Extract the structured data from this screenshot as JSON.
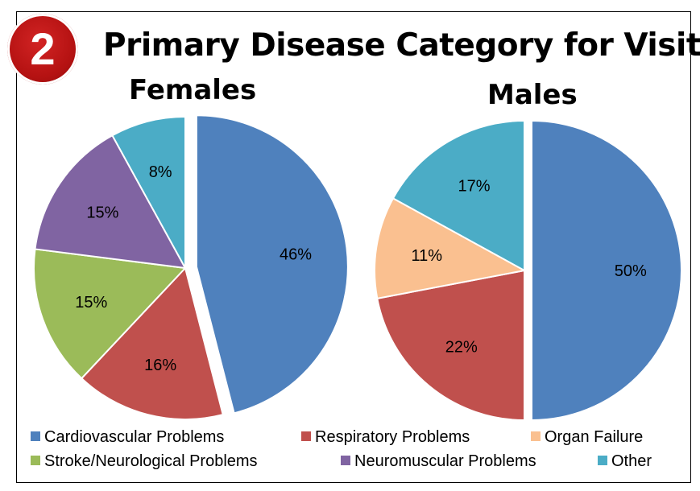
{
  "badge": "2",
  "title": "Primary Disease Category for Visit",
  "chart_data": [
    {
      "type": "pie",
      "title": "Females",
      "categories": [
        "Cardiovascular Problems",
        "Respiratory Problems",
        "Stroke/Neurological Problems",
        "Neuromuscular Problems",
        "Other"
      ],
      "values": [
        46,
        16,
        15,
        15,
        8
      ],
      "labels": [
        "46%",
        "16%",
        "15%",
        "15%",
        "8%"
      ],
      "colors": [
        "#4f81bd",
        "#c0504d",
        "#9bbb59",
        "#8064a2",
        "#4bacc6"
      ],
      "exploded": [
        "Cardiovascular Problems"
      ]
    },
    {
      "type": "pie",
      "title": "Males",
      "categories": [
        "Cardiovascular Problems",
        "Respiratory Problems",
        "Organ Failure",
        "Other"
      ],
      "values": [
        50,
        22,
        11,
        17
      ],
      "labels": [
        "50%",
        "22%",
        "11%",
        "17%"
      ],
      "colors": [
        "#4f81bd",
        "#c0504d",
        "#fac090",
        "#4bacc6"
      ],
      "exploded": [
        "Cardiovascular Problems"
      ]
    }
  ],
  "legend": [
    {
      "label": "Cardiovascular Problems",
      "color": "#4f81bd"
    },
    {
      "label": "Respiratory Problems",
      "color": "#c0504d"
    },
    {
      "label": "Organ Failure",
      "color": "#fac090"
    },
    {
      "label": "Stroke/Neurological Problems",
      "color": "#9bbb59"
    },
    {
      "label": "Neuromuscular Problems",
      "color": "#8064a2"
    },
    {
      "label": "Other",
      "color": "#4bacc6"
    }
  ]
}
